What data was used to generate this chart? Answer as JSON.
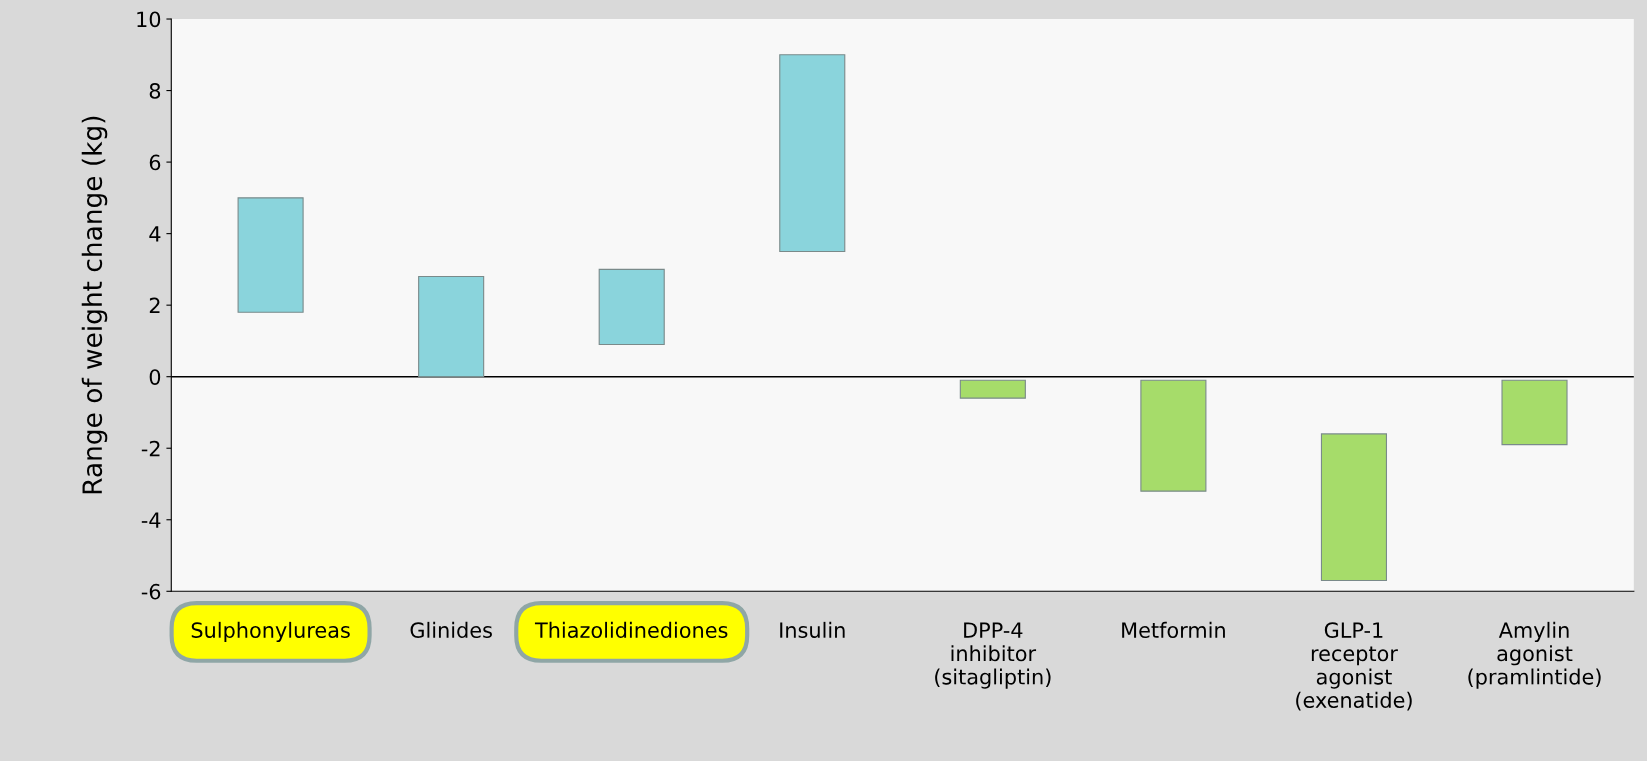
{
  "chart_data": {
    "type": "bar",
    "ylabel": "Range of weight change (kg)",
    "categories": [
      "Sulphonylureas",
      "Glinides",
      "Thiazolidinediones",
      "Insulin",
      "DPP-4\ninhibitor\n(sitagliptin)",
      "Metformin",
      "GLP-1\nreceptor\nagonist\n(exenatide)",
      "Amylin\nagonist\n(pramlintide)"
    ],
    "base": [
      1.8,
      0,
      0.9,
      3.5,
      -0.6,
      -3.2,
      -5.7,
      -1.9
    ],
    "values": [
      3.2,
      2.8,
      2.1,
      5.5,
      0.5,
      3.1,
      4.1,
      1.8
    ],
    "colors": [
      "#8ad4dc",
      "#8ad4dc",
      "#8ad4dc",
      "#8ad4dc",
      "#a6dc6a",
      "#a6dc6a",
      "#a6dc6a",
      "#a6dc6a"
    ],
    "ylim": [
      -6,
      10
    ],
    "yticks": [
      -6,
      -4,
      -2,
      0,
      2,
      4,
      6,
      8,
      10
    ],
    "ref_lines": [
      {
        "axis": "y",
        "value": 0,
        "color": "#000000"
      }
    ],
    "grid": false
  }
}
